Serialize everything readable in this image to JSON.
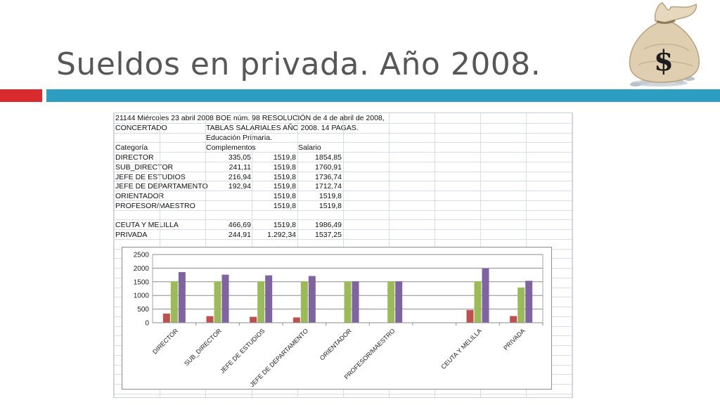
{
  "slide": {
    "title": "Sueldos en privada. Año 2008."
  },
  "sheet": {
    "header_rows": [
      {
        "a": "21144 Miércoles 23 abril 2008 BOE núm. 98 RESOLUCIÓN de 4 de abril de 2008,"
      },
      {
        "a": "CONCERTADO",
        "c": "TABLAS SALARIALES AÑO 2008. 14 PAGAS."
      },
      {
        "c": "Educación Primaria."
      },
      {
        "a": "Categoría",
        "c": "Complementos",
        "e": "Salario"
      }
    ],
    "data_rows": [
      {
        "cat": "DIRECTOR",
        "comp": "335,05",
        "base": "1519,8",
        "sal": "1854,85"
      },
      {
        "cat": "SUB_DIRECTOR",
        "comp": "241,11",
        "base": "1519,8",
        "sal": "1760,91"
      },
      {
        "cat": "JEFE DE ESTUDIOS",
        "comp": "216,94",
        "base": "1519,8",
        "sal": "1736,74"
      },
      {
        "cat": "JEFE DE DEPARTAMENTO",
        "comp": "192,94",
        "base": "1519,8",
        "sal": "1712,74"
      },
      {
        "cat": "ORIENTADOR",
        "comp": "",
        "base": "1519,8",
        "sal": "1519,8"
      },
      {
        "cat": "PROFESOR/MAESTRO",
        "comp": "",
        "base": "1519,8",
        "sal": "1519,8"
      },
      {
        "cat": "",
        "comp": "",
        "base": "",
        "sal": ""
      },
      {
        "cat": "CEUTA Y MELILLA",
        "comp": "466,69",
        "base": "1519,8",
        "sal": "1986,49"
      },
      {
        "cat": "PRIVADA",
        "comp": "244,91",
        "base": "1.292,34",
        "sal": "1537,25"
      }
    ]
  },
  "colors": {
    "comp": "#c0504d",
    "base": "#9bbb59",
    "sal": "#8064a2",
    "red_bar": "#d92b2e",
    "teal_bar": "#2e9dc2"
  },
  "chart_data": {
    "type": "bar",
    "categories": [
      "DIRECTOR",
      "SUB_DIRECTOR",
      "JEFE DE ESTUDIOS",
      "JEFE DE DEPARTAMENTO",
      "ORIENTADOR",
      "PROFESOR/MAESTRO",
      "",
      "CEUTA Y MELILLA",
      "PRIVADA"
    ],
    "series": [
      {
        "values": [
          335.05,
          241.11,
          216.94,
          192.94,
          0,
          0,
          0,
          466.69,
          244.91
        ]
      },
      {
        "values": [
          1519.8,
          1519.8,
          1519.8,
          1519.8,
          1519.8,
          1519.8,
          0,
          1519.8,
          1292.34
        ]
      },
      {
        "values": [
          1854.85,
          1760.91,
          1736.74,
          1712.74,
          1519.8,
          1519.8,
          0,
          1986.49,
          1537.25
        ]
      }
    ],
    "ylim": [
      0,
      2500
    ],
    "yticks": [
      "0",
      "500",
      "1000",
      "1500",
      "2000",
      "2500"
    ],
    "grid": true,
    "legend": "none"
  }
}
